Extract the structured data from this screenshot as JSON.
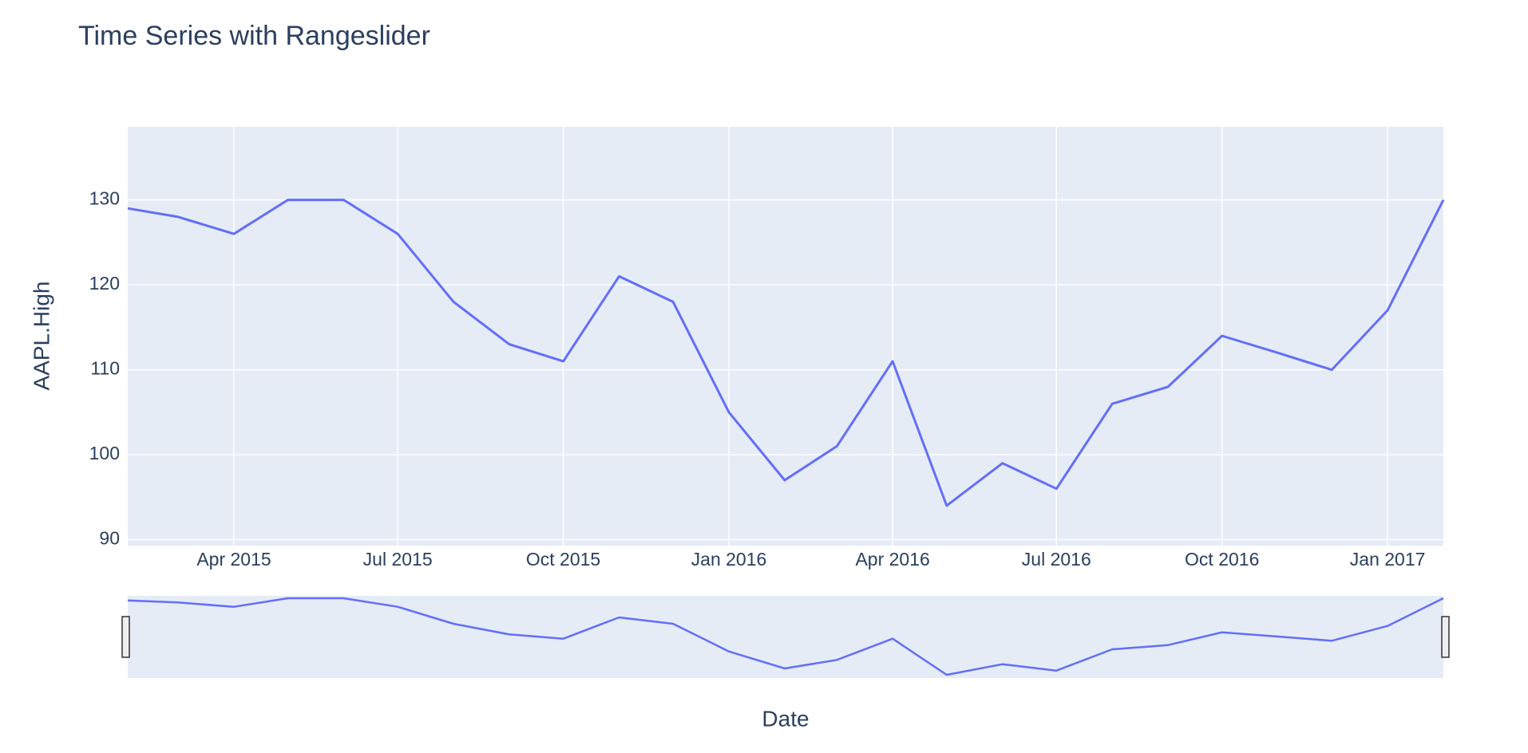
{
  "chart_data": {
    "type": "line",
    "title": "Time Series with Rangeslider",
    "x_label": "Date",
    "y_label": "AAPL.High",
    "x": [
      "2015-02",
      "2015-03",
      "2015-04",
      "2015-05",
      "2015-06",
      "2015-07",
      "2015-08",
      "2015-09",
      "2015-10",
      "2015-11",
      "2015-12",
      "2016-01",
      "2016-02",
      "2016-03",
      "2016-04",
      "2016-05",
      "2016-06",
      "2016-07",
      "2016-08",
      "2016-09",
      "2016-10",
      "2016-11",
      "2016-12",
      "2017-01",
      "2017-02"
    ],
    "series": [
      {
        "name": "AAPL.High",
        "color": "#636efa",
        "values": [
          129,
          128,
          126,
          130,
          130,
          126,
          118,
          113,
          111,
          121,
          118,
          105,
          97,
          101,
          111,
          94,
          99,
          96,
          106,
          108,
          114,
          112,
          110,
          117,
          130
        ]
      }
    ],
    "xlim": [
      "2015-02",
      "2017-02"
    ],
    "xticks": [
      {
        "value": "2015-04",
        "label": "Apr 2015"
      },
      {
        "value": "2015-07",
        "label": "Jul 2015"
      },
      {
        "value": "2015-10",
        "label": "Oct 2015"
      },
      {
        "value": "2016-01",
        "label": "Jan 2016"
      },
      {
        "value": "2016-04",
        "label": "Apr 2016"
      },
      {
        "value": "2016-07",
        "label": "Jul 2016"
      },
      {
        "value": "2016-10",
        "label": "Oct 2016"
      },
      {
        "value": "2017-01",
        "label": "Jan 2017"
      }
    ],
    "ylim": [
      89.3,
      138.6
    ],
    "yticks": [
      90,
      100,
      110,
      120,
      130
    ],
    "grid": true,
    "rangeslider": true
  }
}
